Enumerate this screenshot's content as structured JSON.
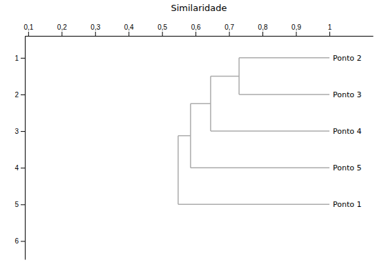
{
  "chart_data": {
    "type": "dendrogram",
    "x_label": "Similaridade",
    "labels": [
      "Ponto 2",
      "Ponto 3",
      "Ponto 4",
      "Ponto 5",
      "Ponto 1"
    ],
    "y": [
      1,
      2,
      3,
      4,
      5
    ],
    "leaf_x": 1.0,
    "merges": [
      0.73,
      0.645,
      0.585,
      0.548
    ],
    "color": "#aaaaaa",
    "xlim": [
      0.09,
      1.13
    ],
    "ylim": [
      0.4,
      6.5
    ],
    "xticks": [
      {
        "value": 0.1,
        "label": "0,1"
      },
      {
        "value": 0.2,
        "label": "0,2"
      },
      {
        "value": 0.3,
        "label": "0,3"
      },
      {
        "value": 0.4,
        "label": "0,4"
      },
      {
        "value": 0.5,
        "label": "0,5"
      },
      {
        "value": 0.6,
        "label": "0,6"
      },
      {
        "value": 0.7,
        "label": "0,7"
      },
      {
        "value": 0.8,
        "label": "0,8"
      },
      {
        "value": 0.9,
        "label": "0,9"
      },
      1
    ],
    "yticks": [
      1,
      2,
      3,
      4,
      5,
      6
    ]
  }
}
